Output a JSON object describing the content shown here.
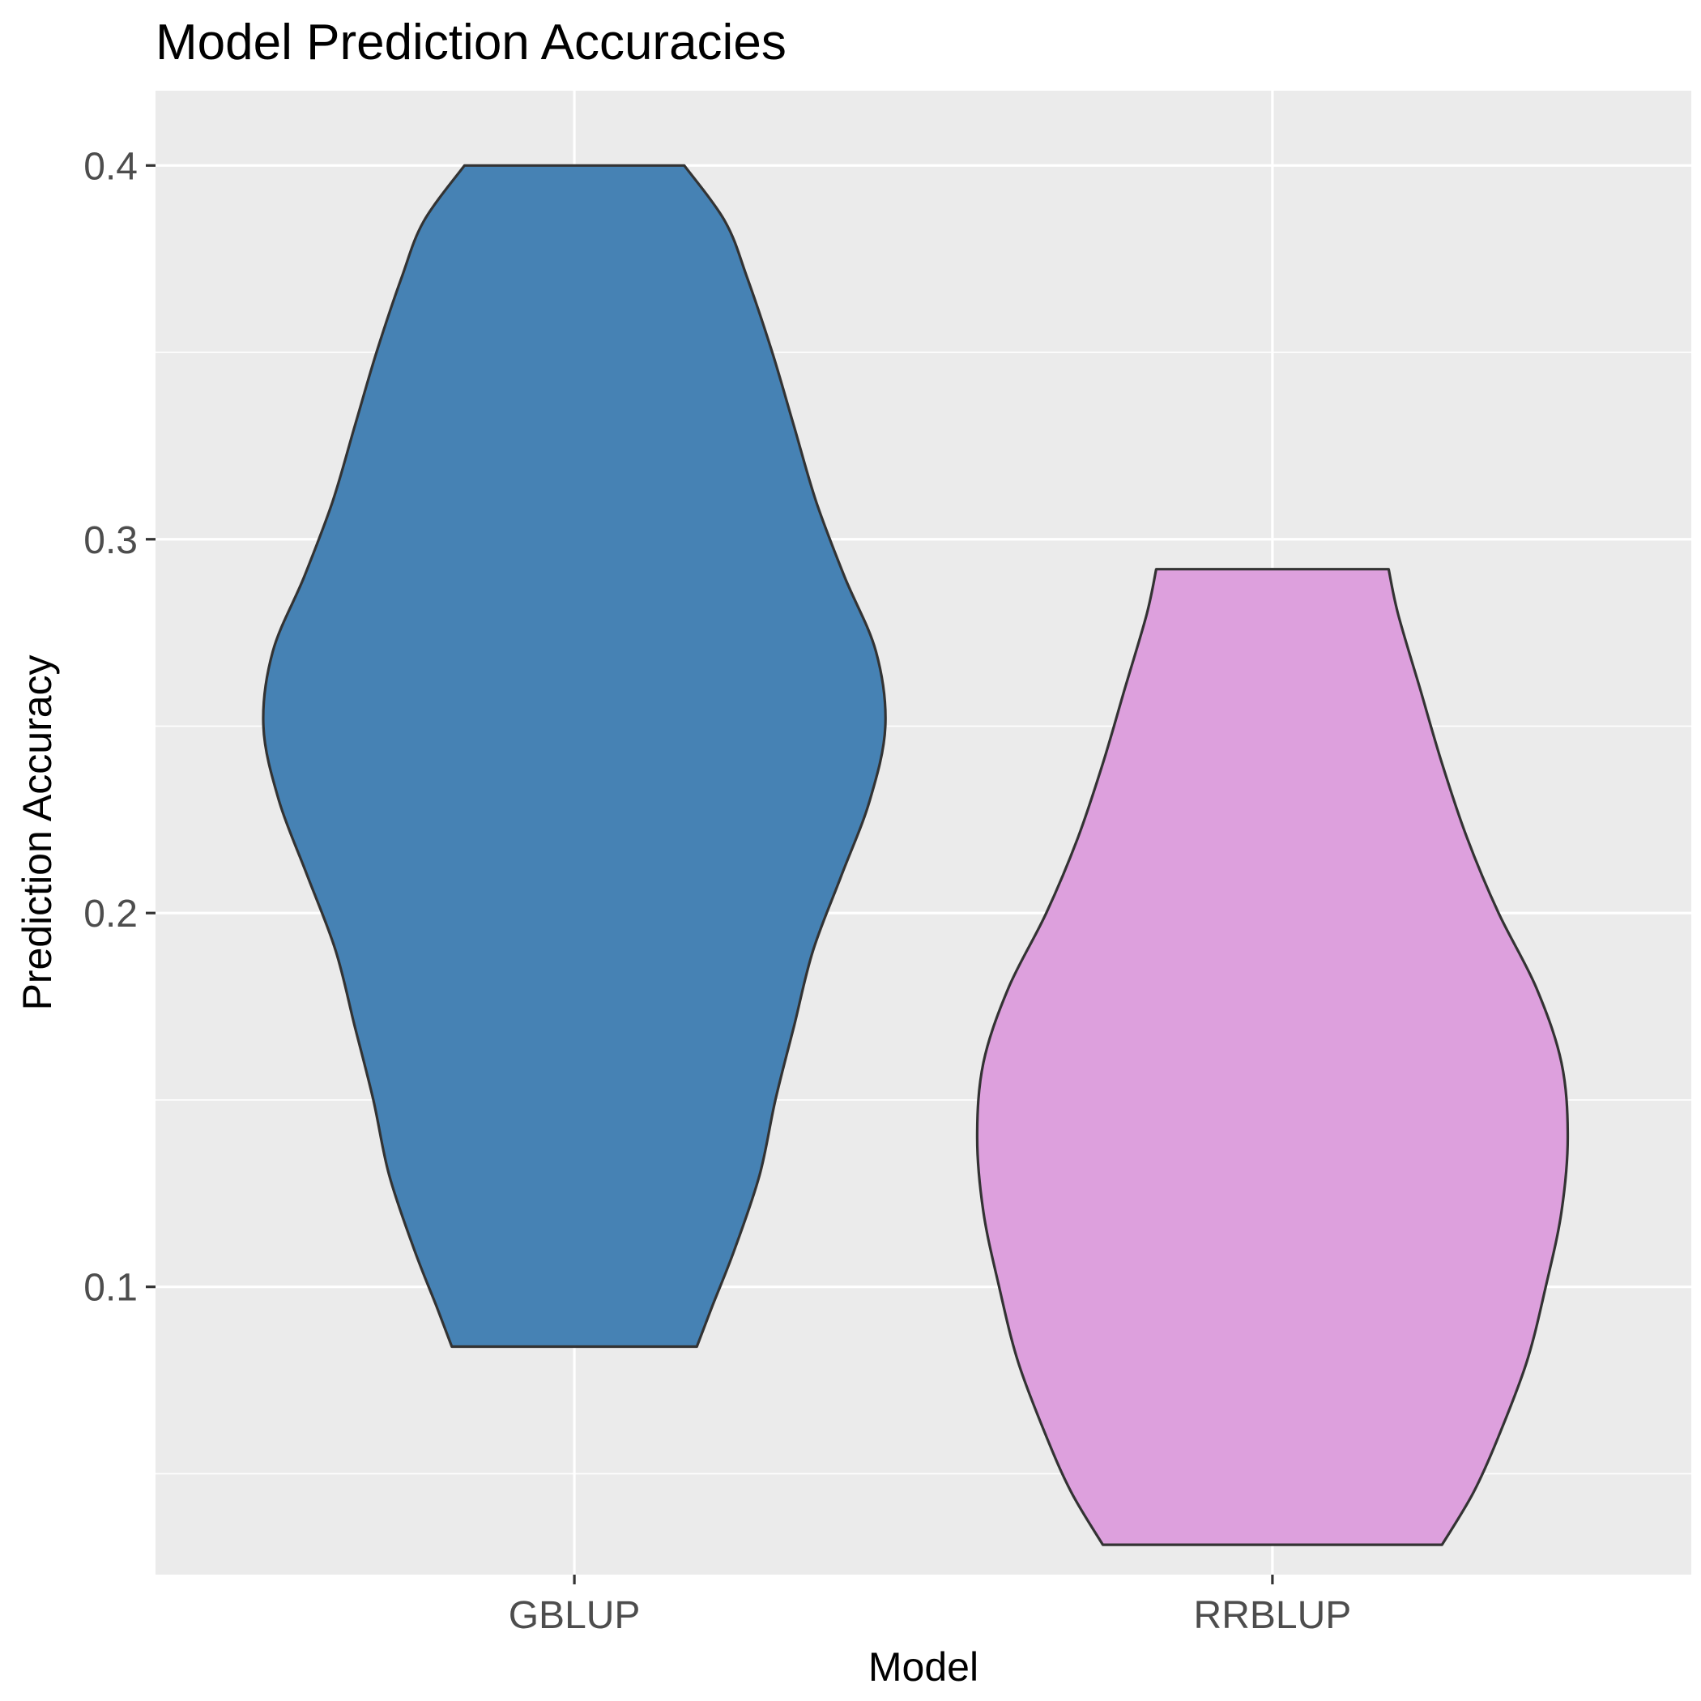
{
  "chart_data": {
    "type": "violin",
    "title": "Model Prediction Accuracies",
    "xlabel": "Model",
    "ylabel": "Prediction Accuracy",
    "ylim": [
      0.023,
      0.42
    ],
    "yticks": [
      0.1,
      0.2,
      0.3,
      0.4
    ],
    "ytick_labels": [
      "0.1",
      "0.2",
      "0.3",
      "0.4"
    ],
    "ygrid_minor": [
      0.05,
      0.15,
      0.25,
      0.35
    ],
    "categories": [
      "GBLUP",
      "RRBLUP"
    ],
    "grid": true,
    "legend": "none",
    "background_color": "#EBEBEB",
    "gridline_color": "#FFFFFF",
    "outline_color": "#333333",
    "series": [
      {
        "category": "GBLUP",
        "color": "#4682B4",
        "min": 0.084,
        "max": 0.4,
        "density_profile": [
          [
            0.084,
            0.39
          ],
          [
            0.095,
            0.44
          ],
          [
            0.11,
            0.51
          ],
          [
            0.13,
            0.59
          ],
          [
            0.15,
            0.64
          ],
          [
            0.17,
            0.7
          ],
          [
            0.19,
            0.76
          ],
          [
            0.21,
            0.85
          ],
          [
            0.23,
            0.94
          ],
          [
            0.25,
            0.99
          ],
          [
            0.27,
            0.96
          ],
          [
            0.29,
            0.86
          ],
          [
            0.31,
            0.77
          ],
          [
            0.33,
            0.7
          ],
          [
            0.35,
            0.63
          ],
          [
            0.37,
            0.55
          ],
          [
            0.385,
            0.48
          ],
          [
            0.4,
            0.35
          ]
        ]
      },
      {
        "category": "RRBLUP",
        "color": "#DDA0DD",
        "min": 0.031,
        "max": 0.292,
        "density_profile": [
          [
            0.031,
            0.54
          ],
          [
            0.045,
            0.64
          ],
          [
            0.06,
            0.72
          ],
          [
            0.08,
            0.81
          ],
          [
            0.1,
            0.87
          ],
          [
            0.12,
            0.92
          ],
          [
            0.14,
            0.94
          ],
          [
            0.16,
            0.92
          ],
          [
            0.18,
            0.84
          ],
          [
            0.2,
            0.72
          ],
          [
            0.22,
            0.62
          ],
          [
            0.24,
            0.54
          ],
          [
            0.26,
            0.47
          ],
          [
            0.28,
            0.4
          ],
          [
            0.292,
            0.37
          ]
        ]
      }
    ]
  }
}
